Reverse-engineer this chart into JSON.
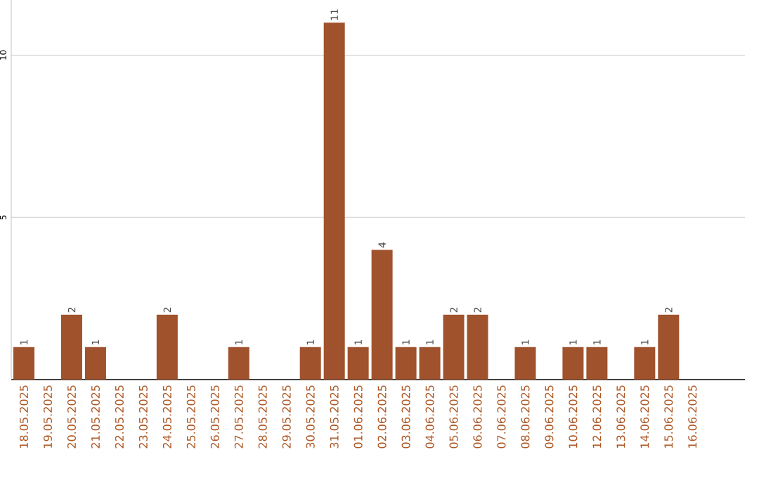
{
  "chart_data": {
    "type": "bar",
    "categories": [
      "18.05.2025",
      "19.05.2025",
      "20.05.2025",
      "21.05.2025",
      "22.05.2025",
      "23.05.2025",
      "24.05.2025",
      "25.05.2025",
      "26.05.2025",
      "27.05.2025",
      "28.05.2025",
      "29.05.2025",
      "30.05.2025",
      "31.05.2025",
      "01.06.2025",
      "02.06.2025",
      "03.06.2025",
      "04.06.2025",
      "05.06.2025",
      "06.06.2025",
      "07.06.2025",
      "08.06.2025",
      "09.06.2025",
      "10.06.2025",
      "12.06.2025",
      "13.06.2025",
      "14.06.2025",
      "15.06.2025",
      "16.06.2025"
    ],
    "values": [
      1,
      0,
      2,
      1,
      0,
      0,
      2,
      0,
      0,
      1,
      0,
      0,
      1,
      11,
      1,
      4,
      1,
      1,
      2,
      2,
      0,
      1,
      0,
      1,
      1,
      0,
      1,
      2,
      0
    ],
    "value_labels": [
      "1",
      null,
      "2",
      "1",
      null,
      null,
      "2",
      null,
      null,
      "1",
      null,
      null,
      "1",
      "11",
      "1",
      "4",
      "1",
      "1",
      "2",
      "2",
      null,
      "1",
      null,
      "1",
      "1",
      null,
      "1",
      "2",
      null
    ],
    "color": "#a0522d",
    "ylim": [
      0,
      11.7
    ],
    "yticks": [
      5,
      10
    ],
    "grid": "y"
  }
}
